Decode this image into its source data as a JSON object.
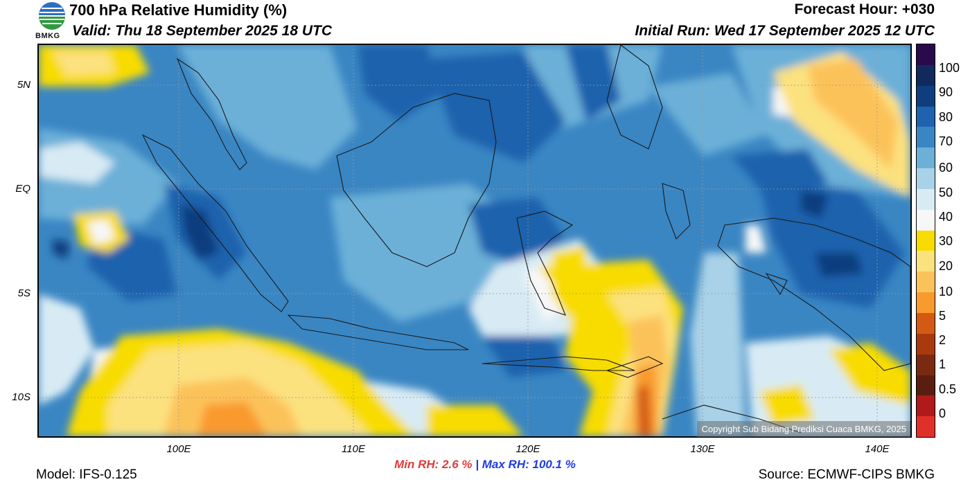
{
  "header": {
    "title": "700 hPa Relative Humidity (%)",
    "valid": "Valid: Thu 18 September 2025 18 UTC",
    "forecast_hour": "Forecast Hour: +030",
    "initial_run": "Initial Run: Wed 17 September 2025 12 UTC",
    "logo_text": "BMKG"
  },
  "map": {
    "lat_labels": [
      "5N",
      "EQ",
      "5S",
      "10S"
    ],
    "lon_labels": [
      "100E",
      "110E",
      "120E",
      "130E",
      "140E"
    ],
    "copyright": "Copyright Sub Bidang Prediksi Cuaca BMKG, 2025"
  },
  "colorbar": {
    "labels": [
      "100",
      "90",
      "80",
      "70",
      "60",
      "50",
      "40",
      "30",
      "20",
      "10",
      "5",
      "2",
      "1",
      "0.5",
      "0"
    ],
    "colors": [
      "#2a0a4a",
      "#102a5e",
      "#0f3e7e",
      "#1f62ad",
      "#3a86c3",
      "#6cb0d8",
      "#a9d2e8",
      "#d8ebf4",
      "#f7f7f7",
      "#f8dc00",
      "#fce17f",
      "#fcc25a",
      "#f99a2e",
      "#d35a12",
      "#a83a0e",
      "#7a2a10",
      "#5a1e10",
      "#b01a1a",
      "#e0302a"
    ]
  },
  "stats": {
    "min_label": "Min RH:",
    "min_value": "2.6 %",
    "separator": "|",
    "max_label": "Max RH:",
    "max_value": "100.1 %"
  },
  "footer": {
    "model": "Model: IFS-0.125",
    "source": "Source: ECMWF-CIPS BMKG"
  }
}
